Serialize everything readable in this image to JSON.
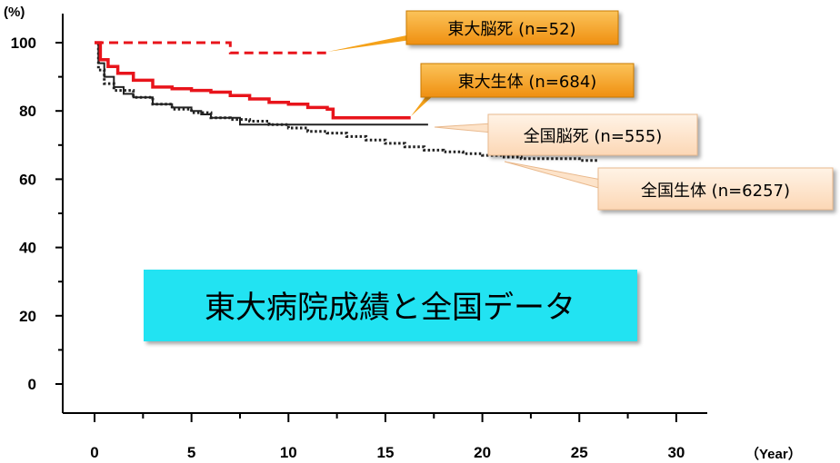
{
  "chart_data": {
    "type": "line",
    "title": "東大病院成績と全国データ",
    "y_unit": "(%)",
    "x_unit": "（Year）",
    "xlim": [
      0,
      30
    ],
    "ylim": [
      0,
      100
    ],
    "x_ticks": [
      "0",
      "5",
      "10",
      "15",
      "20",
      "25",
      "30"
    ],
    "y_ticks": [
      "0",
      "20",
      "40",
      "60",
      "80",
      "100"
    ],
    "grid": false,
    "series": [
      {
        "name": "東大脳死 (n=52)",
        "color": "#e8141b",
        "style": "dashed",
        "x": [
          0,
          7,
          7,
          12
        ],
        "y": [
          100,
          100,
          97,
          97
        ]
      },
      {
        "name": "東大生体 (n=684)",
        "color": "#e8141b",
        "style": "solid",
        "x": [
          0,
          0.3,
          0.7,
          1.2,
          2,
          3,
          4,
          5,
          6,
          7,
          8,
          9,
          10,
          11,
          12,
          12.3,
          14,
          16.3
        ],
        "y": [
          100,
          95,
          93,
          91,
          89,
          87,
          86.5,
          86,
          85.5,
          84.5,
          83.5,
          82.5,
          82,
          81,
          80.5,
          78,
          78,
          78
        ]
      },
      {
        "name": "全国脳死 (n=555)",
        "color": "#222222",
        "style": "solid",
        "x": [
          0,
          0.2,
          0.5,
          1,
          1.5,
          2,
          3,
          4,
          5,
          5.5,
          6,
          7,
          7.5,
          10,
          12,
          17.2
        ],
        "y": [
          100,
          94,
          90,
          87,
          85,
          84,
          82,
          81,
          80,
          79,
          78,
          78,
          76,
          76,
          76,
          76
        ]
      },
      {
        "name": "全国生体 (n=6257)",
        "color": "#222222",
        "style": "dotted",
        "x": [
          0,
          0.2,
          0.5,
          1,
          2,
          3,
          4,
          5,
          6,
          7,
          8,
          9,
          10,
          11,
          12,
          13,
          14,
          15,
          16,
          17,
          18,
          19,
          20,
          21,
          22,
          23,
          24,
          25,
          26
        ],
        "y": [
          100,
          92,
          88,
          86,
          84,
          82,
          80.5,
          79.5,
          78,
          77.5,
          77,
          76,
          75,
          74,
          73.5,
          72.5,
          71.5,
          70.5,
          69.5,
          68.5,
          68,
          67.5,
          67,
          66.5,
          66,
          66,
          66,
          65.5,
          65.5
        ]
      }
    ],
    "colors": {
      "callout_strong": "#f5a21a",
      "callout_light": "#fde3c9",
      "title_box": "#24e3f2"
    }
  }
}
